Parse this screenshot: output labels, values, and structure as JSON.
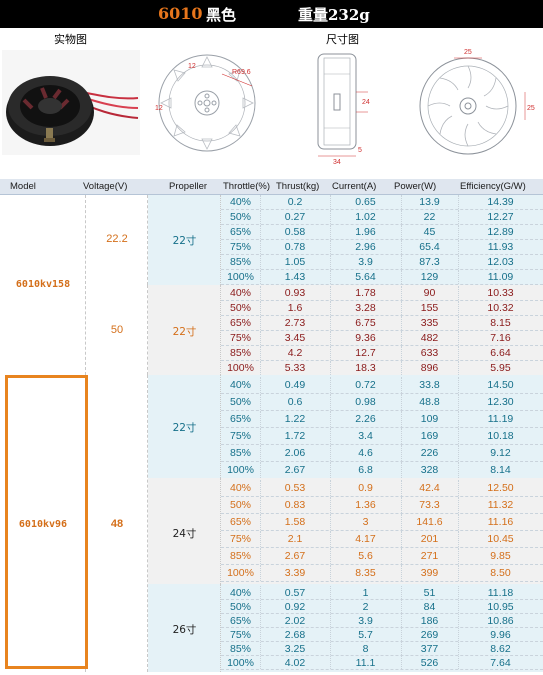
{
  "title": {
    "model": "6010",
    "color": "黑色",
    "weight": "重量232g"
  },
  "sections": {
    "photo_label": "实物图",
    "dimension_label": "尺寸图"
  },
  "dimensions": {
    "radius": "R69.6",
    "d1": "25",
    "d2": "25",
    "d3": "12",
    "d4": "12",
    "d5": "24",
    "d6": "34",
    "d7": "5"
  },
  "header": {
    "model": "Model",
    "voltage": "Voltage(V)",
    "propeller": "Propeller",
    "throttle": "Throttle(%)",
    "thrust": "Thrust(kg)",
    "current": "Current(A)",
    "power": "Power(W)",
    "efficiency": "Efficiency(G/W)"
  },
  "models": [
    {
      "name": "6010kv158",
      "voltages": [
        {
          "voltage": "22.2",
          "props": [
            {
              "prop": "22寸",
              "rows": [
                [
                  "40%",
                  "0.2",
                  "0.65",
                  "13.9",
                  "14.39"
                ],
                [
                  "50%",
                  "0.27",
                  "1.02",
                  "22",
                  "12.27"
                ],
                [
                  "65%",
                  "0.58",
                  "1.96",
                  "45",
                  "12.89"
                ],
                [
                  "75%",
                  "0.78",
                  "2.96",
                  "65.4",
                  "11.93"
                ],
                [
                  "85%",
                  "1.05",
                  "3.9",
                  "87.3",
                  "12.03"
                ],
                [
                  "100%",
                  "1.43",
                  "5.64",
                  "129",
                  "11.09"
                ]
              ]
            }
          ]
        },
        {
          "voltage": "50",
          "props": [
            {
              "prop": "22寸",
              "rows": [
                [
                  "40%",
                  "0.93",
                  "1.78",
                  "90",
                  "10.33"
                ],
                [
                  "50%",
                  "1.6",
                  "3.28",
                  "155",
                  "10.32"
                ],
                [
                  "65%",
                  "2.73",
                  "6.75",
                  "335",
                  "8.15"
                ],
                [
                  "75%",
                  "3.45",
                  "9.36",
                  "482",
                  "7.16"
                ],
                [
                  "85%",
                  "4.2",
                  "12.7",
                  "633",
                  "6.64"
                ],
                [
                  "100%",
                  "5.33",
                  "18.3",
                  "896",
                  "5.95"
                ]
              ]
            }
          ]
        }
      ]
    },
    {
      "name": "6010kv96",
      "voltages": [
        {
          "voltage": "48",
          "props": [
            {
              "prop": "22寸",
              "rows": [
                [
                  "40%",
                  "0.49",
                  "0.72",
                  "33.8",
                  "14.50"
                ],
                [
                  "50%",
                  "0.6",
                  "0.98",
                  "48.8",
                  "12.30"
                ],
                [
                  "65%",
                  "1.22",
                  "2.26",
                  "109",
                  "11.19"
                ],
                [
                  "75%",
                  "1.72",
                  "3.4",
                  "169",
                  "10.18"
                ],
                [
                  "85%",
                  "2.06",
                  "4.6",
                  "226",
                  "9.12"
                ],
                [
                  "100%",
                  "2.67",
                  "6.8",
                  "328",
                  "8.14"
                ]
              ]
            },
            {
              "prop": "24寸",
              "rows": [
                [
                  "40%",
                  "0.53",
                  "0.9",
                  "42.4",
                  "12.50"
                ],
                [
                  "50%",
                  "0.83",
                  "1.36",
                  "73.3",
                  "11.32"
                ],
                [
                  "65%",
                  "1.58",
                  "3",
                  "141.6",
                  "11.16"
                ],
                [
                  "75%",
                  "2.1",
                  "4.17",
                  "201",
                  "10.45"
                ],
                [
                  "85%",
                  "2.67",
                  "5.6",
                  "271",
                  "9.85"
                ],
                [
                  "100%",
                  "3.39",
                  "8.35",
                  "399",
                  "8.50"
                ]
              ]
            },
            {
              "prop": "26寸",
              "rows": [
                [
                  "40%",
                  "0.57",
                  "1",
                  "51",
                  "11.18"
                ],
                [
                  "50%",
                  "0.92",
                  "2",
                  "84",
                  "10.95"
                ],
                [
                  "65%",
                  "2.02",
                  "3.9",
                  "186",
                  "10.86"
                ],
                [
                  "75%",
                  "2.68",
                  "5.7",
                  "269",
                  "9.96"
                ],
                [
                  "85%",
                  "3.25",
                  "8",
                  "377",
                  "8.62"
                ],
                [
                  "100%",
                  "4.02",
                  "11.1",
                  "526",
                  "7.64"
                ]
              ]
            }
          ]
        }
      ]
    }
  ],
  "colors": {
    "title_bg": "#000000",
    "model_orange": "#e8761c",
    "highlight": "#e8841f",
    "blue_text": "#16708a",
    "red_text": "#8a1a1a",
    "blue_bg": "#e5f2f7",
    "gray_bg": "#f1f1f1"
  }
}
